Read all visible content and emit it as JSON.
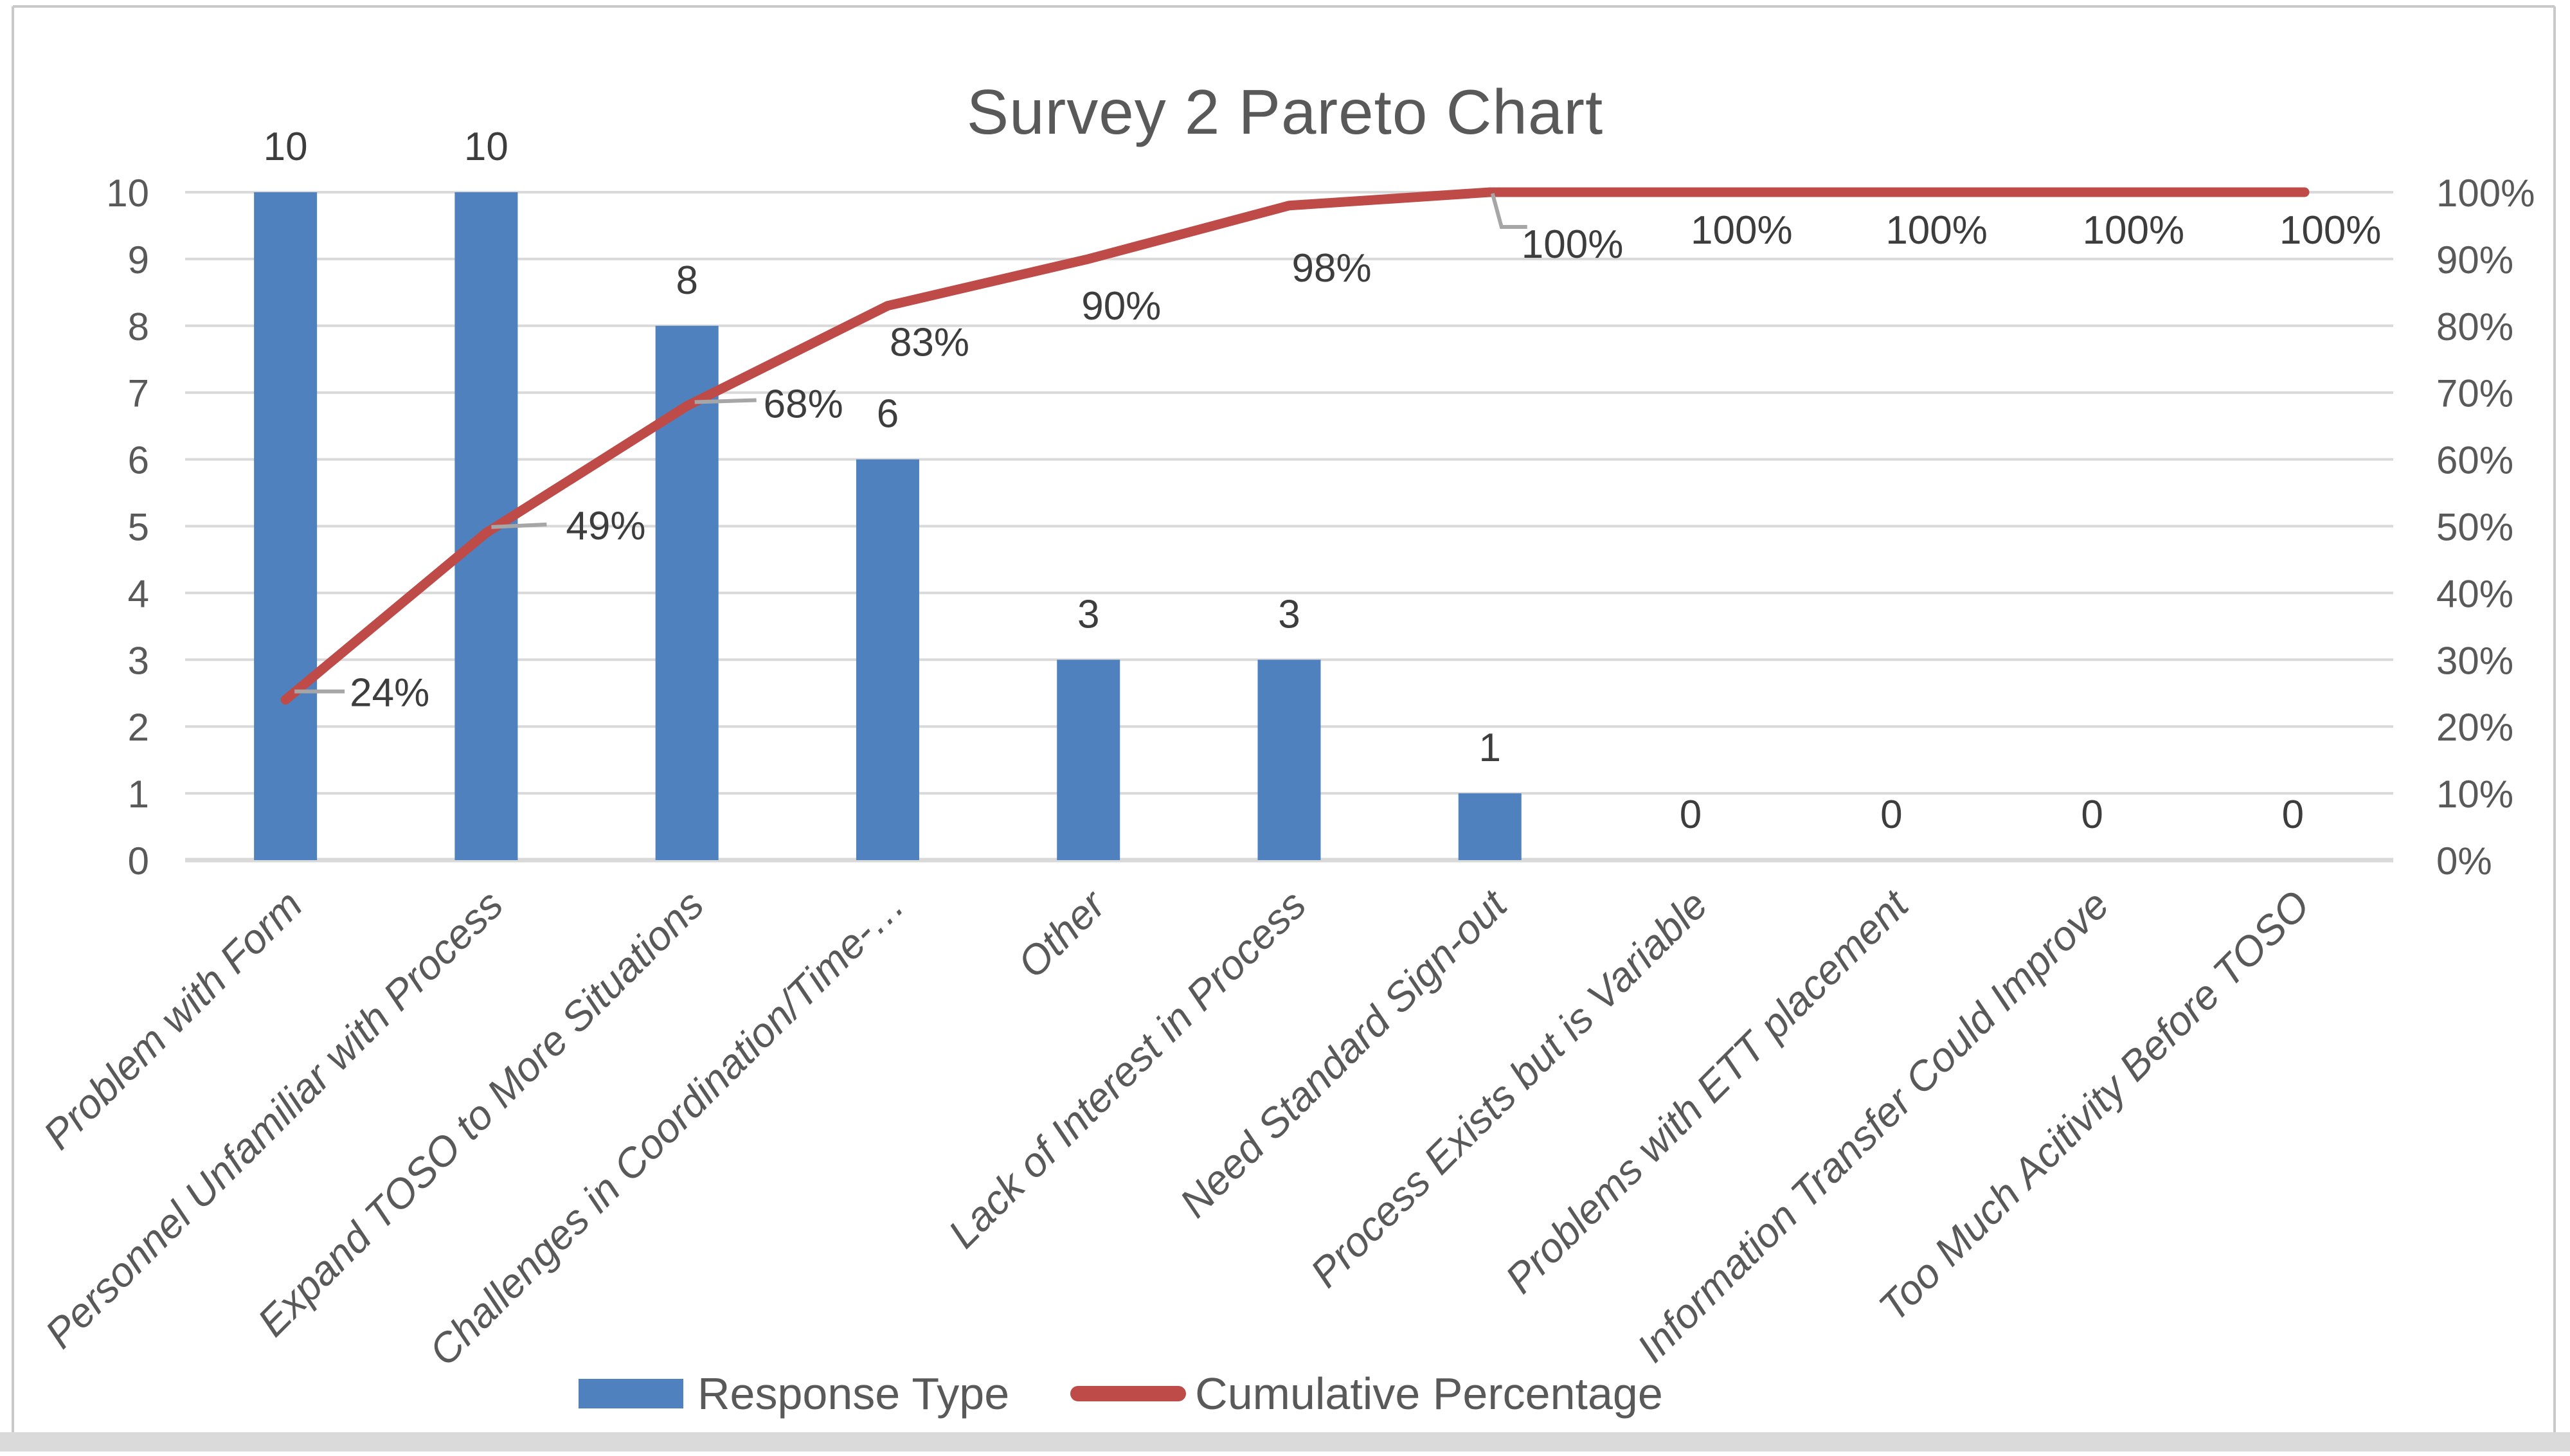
{
  "chart_data": {
    "type": "bar+line (pareto)",
    "title": "Survey 2 Pareto Chart",
    "categories": [
      "Problem with Form",
      "Personnel Unfamiliar with Process",
      "Expand TOSO to More Situations",
      "Challenges in Coordination/Time-…",
      "Other",
      "Lack of Interest in Process",
      "Need Standard Sign-out",
      "Process Exists but is Variable",
      "Problems with ETT placement",
      "Information Transfer Could Improve",
      "Too Much Acitivity Before TOSO"
    ],
    "series": [
      {
        "name": "Response Type",
        "type": "bar",
        "color": "#4E81BD",
        "values": [
          10,
          10,
          8,
          6,
          3,
          3,
          1,
          0,
          0,
          0,
          0
        ],
        "labels": [
          "10",
          "10",
          "8",
          "6",
          "3",
          "3",
          "1",
          "0",
          "0",
          "0",
          "0"
        ]
      },
      {
        "name": "Cumulative Percentage",
        "type": "line",
        "color": "#BE4B48",
        "values": [
          24,
          49,
          68,
          83,
          90,
          98,
          100,
          100,
          100,
          100,
          100
        ],
        "labels": [
          "24%",
          "49%",
          "68%",
          "83%",
          "90%",
          "98%",
          "100%",
          "100%",
          "100%",
          "100%",
          "100%"
        ]
      }
    ],
    "left_axis": {
      "min": 0,
      "max": 10,
      "step": 1,
      "ticks": [
        "0",
        "1",
        "2",
        "3",
        "4",
        "5",
        "6",
        "7",
        "8",
        "9",
        "10"
      ]
    },
    "right_axis": {
      "min": 0,
      "max": 100,
      "step": 10,
      "ticks": [
        "0%",
        "10%",
        "20%",
        "30%",
        "40%",
        "50%",
        "60%",
        "70%",
        "80%",
        "90%",
        "100%"
      ]
    },
    "grid": true,
    "legend_position": "bottom",
    "colors": {
      "background": "#FFFFFF",
      "grid": "#D9D9D9",
      "axis_text": "#595959",
      "data_label": "#3D3D3D",
      "leader": "#A6A6A6",
      "title_text": "#595959",
      "frame": "#C9C9C9",
      "bottom_strip": "#DADADA"
    }
  }
}
